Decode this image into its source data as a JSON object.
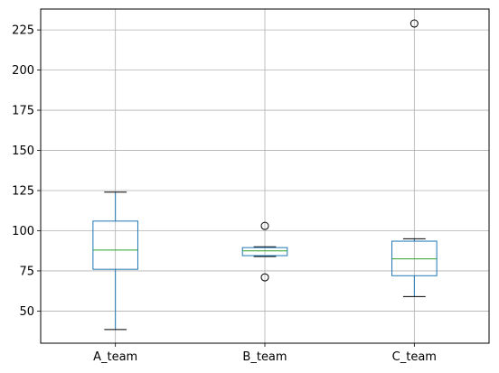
{
  "chart_data": {
    "type": "boxplot",
    "title": "",
    "xlabel": "",
    "ylabel": "",
    "ylim": [
      30,
      238
    ],
    "yticks": [
      50,
      75,
      100,
      125,
      150,
      175,
      200,
      225
    ],
    "grid": true,
    "categories": [
      "A_team",
      "B_team",
      "C_team"
    ],
    "boxes": [
      {
        "name": "A_team",
        "whislo": 38.5,
        "q1": 76.0,
        "med": 88.0,
        "q3": 106.0,
        "whishi": 124.0,
        "fliers": []
      },
      {
        "name": "B_team",
        "whislo": 84.0,
        "q1": 84.5,
        "med": 87.5,
        "q3": 89.5,
        "whishi": 90.0,
        "fliers": [
          103.0,
          71.0
        ]
      },
      {
        "name": "C_team",
        "whislo": 59.0,
        "q1": 72.0,
        "med": 82.5,
        "q3": 93.5,
        "whishi": 95.0,
        "fliers": [
          229.0
        ]
      }
    ],
    "colors": {
      "box": "#1f77b4",
      "median": "#2ca02c",
      "whisker": "#000000",
      "grid": "#b0b0b0",
      "axis": "#000000"
    }
  }
}
